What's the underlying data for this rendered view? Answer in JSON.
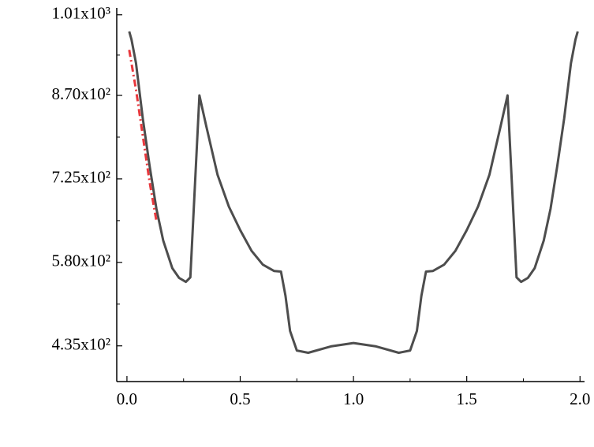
{
  "chart_data": {
    "type": "line",
    "x": [
      0.01,
      0.02,
      0.04,
      0.07,
      0.1,
      0.13,
      0.16,
      0.2,
      0.23,
      0.26,
      0.28,
      0.32,
      0.35,
      0.4,
      0.45,
      0.5,
      0.55,
      0.6,
      0.65,
      0.68,
      0.7,
      0.72,
      0.75,
      0.8,
      0.9,
      1.0,
      1.1,
      1.2,
      1.25,
      1.28,
      1.3,
      1.32,
      1.35,
      1.4,
      1.45,
      1.5,
      1.55,
      1.6,
      1.65,
      1.68,
      1.72,
      1.74,
      1.77,
      1.8,
      1.84,
      1.87,
      1.9,
      1.93,
      1.96,
      1.98,
      1.99
    ],
    "series": [
      {
        "color": "#4d4d4d",
        "values": [
          981,
          967,
          926,
          830,
          748,
          673,
          618,
          570,
          553,
          546,
          554,
          870,
          817,
          732,
          677,
          636,
          600,
          576,
          565,
          564,
          522,
          461,
          427,
          423,
          434,
          440,
          434,
          423,
          427,
          461,
          522,
          564,
          565,
          576,
          600,
          636,
          677,
          732,
          817,
          870,
          554,
          546,
          553,
          570,
          618,
          673,
          748,
          830,
          926,
          967,
          981
        ]
      },
      {
        "color": "#e8383d",
        "dash": "dashdot",
        "x": [
          0.01,
          0.04,
          0.07,
          0.1,
          0.13
        ],
        "values": [
          949,
          880,
          800,
          720,
          652
        ]
      }
    ],
    "xlim": [
      -0.045,
      2.02
    ],
    "ylim": [
      373,
      1022
    ],
    "xticks": [
      {
        "value": 0,
        "label": "0.0"
      },
      0.5,
      {
        "value": 1,
        "label": "1.0"
      },
      1.5,
      {
        "value": 2,
        "label": "2.0"
      }
    ],
    "yticks": [
      {
        "value": 435,
        "label": "4.35x10²"
      },
      {
        "value": 580,
        "label": "5.80x10²"
      },
      {
        "value": 725,
        "label": "7.25x10²"
      },
      {
        "value": 870,
        "label": "8.70x10²"
      },
      {
        "value": 1010,
        "label": "1.01x10³"
      }
    ]
  }
}
